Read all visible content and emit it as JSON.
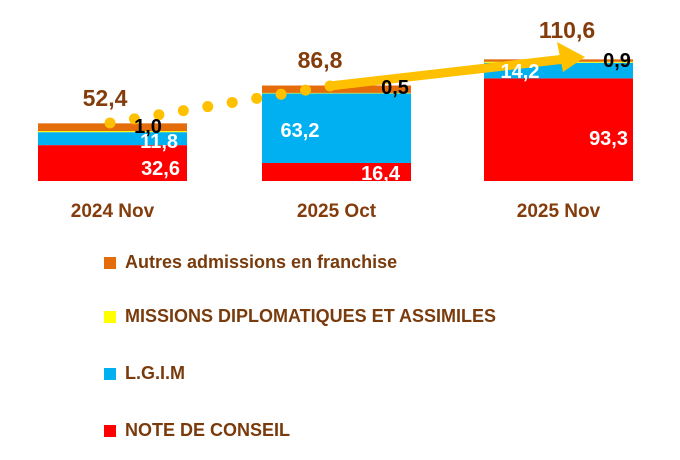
{
  "chart_data": {
    "type": "bar",
    "stacked": true,
    "title": "",
    "xlabel": "",
    "ylabel": "",
    "categories": [
      "2024 Nov",
      "2025 Oct",
      "2025 Nov"
    ],
    "series": [
      {
        "name": "NOTE DE CONSEIL",
        "color": "#FF0000",
        "values": [
          32.6,
          16.4,
          93.3
        ],
        "labels": [
          "32,6",
          "16,4",
          "93,3"
        ]
      },
      {
        "name": "L.G.I.M",
        "color": "#00B0F0",
        "values": [
          11.8,
          63.2,
          14.2
        ],
        "labels": [
          "11,8",
          "63,2",
          "14,2"
        ]
      },
      {
        "name": "MISSIONS DIPLOMATIQUES ET ASSIMILES",
        "color": "#FFFF00",
        "values": [
          1.0,
          0.5,
          0.9
        ],
        "labels": [
          "1,0",
          "0,5",
          "0,9"
        ]
      },
      {
        "name": "Autres admissions en franchise",
        "color": "#E46C0A",
        "values": [
          7.0,
          6.7,
          2.2
        ],
        "labels": []
      }
    ],
    "totals": [
      52.4,
      86.8,
      110.6
    ],
    "total_labels": [
      "52,4",
      "86,8",
      "110,6"
    ],
    "legend_order": [
      3,
      2,
      1,
      0
    ],
    "legend_position": "bottom",
    "grid": false,
    "trend_arrow_color": "#FFC000",
    "label_color": "#843C0C"
  }
}
